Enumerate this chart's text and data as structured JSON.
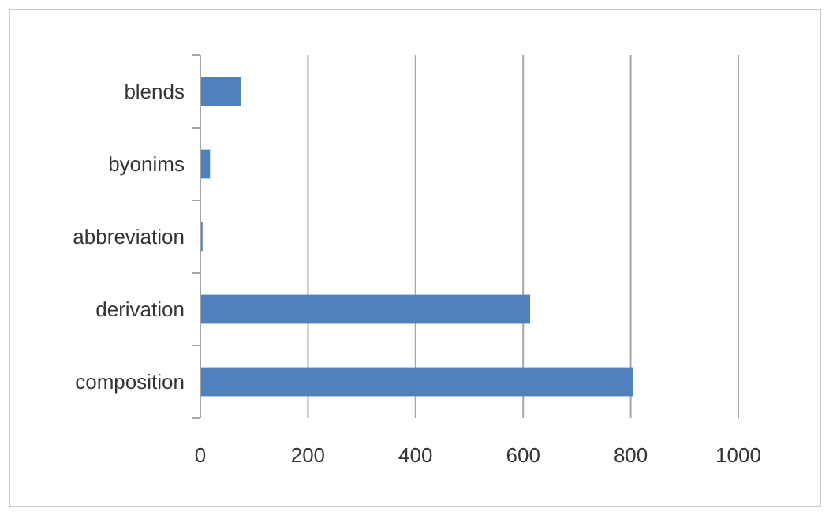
{
  "chart_data": {
    "type": "bar",
    "orientation": "horizontal",
    "categories": [
      "blends",
      "byonims",
      "abbreviation",
      "derivation",
      "composition"
    ],
    "values": [
      75,
      18,
      4,
      613,
      804
    ],
    "color": "#4f81bd",
    "xlim": [
      0,
      1000
    ],
    "xticks": [
      0,
      200,
      400,
      600,
      800,
      1000
    ],
    "grid": "x"
  }
}
